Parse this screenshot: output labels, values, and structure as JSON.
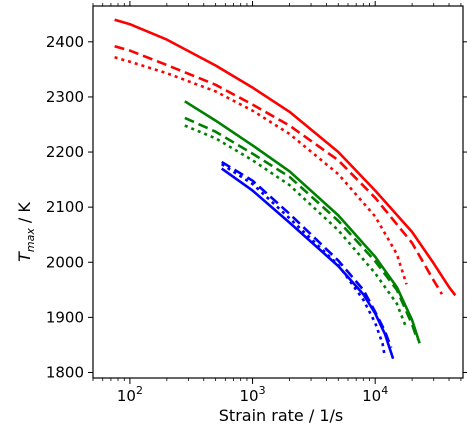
{
  "chart_data": {
    "type": "line",
    "xlabel": "Strain rate / 1/s",
    "ylabel_main": "T",
    "ylabel_sub": "max",
    "ylabel_unit": " / K",
    "xscale": "log",
    "xlim": [
      50,
      52000
    ],
    "ylim": [
      1790,
      2465
    ],
    "x_ticks": [
      {
        "value": 100,
        "base": "10",
        "exp": "2"
      },
      {
        "value": 1000,
        "base": "10",
        "exp": "3"
      },
      {
        "value": 10000,
        "base": "10",
        "exp": "4"
      }
    ],
    "y_ticks": [
      1800,
      1900,
      2000,
      2100,
      2200,
      2300,
      2400
    ],
    "grid": false,
    "series": [
      {
        "color": "#ff0000",
        "style": "solid",
        "x": [
          75,
          100,
          200,
          500,
          1000,
          2000,
          5000,
          10000,
          20000,
          30000,
          40000,
          45000
        ],
        "y": [
          2440,
          2432,
          2404,
          2357,
          2317,
          2273,
          2200,
          2130,
          2055,
          1998,
          1955,
          1940
        ]
      },
      {
        "color": "#ff0000",
        "style": "dashed",
        "x": [
          75,
          100,
          200,
          500,
          1000,
          2000,
          5000,
          10000,
          20000,
          30000,
          35000
        ],
        "y": [
          2392,
          2384,
          2358,
          2322,
          2286,
          2248,
          2185,
          2117,
          2035,
          1967,
          1942
        ]
      },
      {
        "color": "#ff0000",
        "style": "dotted",
        "x": [
          75,
          100,
          200,
          500,
          1000,
          2000,
          5000,
          10000,
          15000,
          18000
        ],
        "y": [
          2372,
          2364,
          2343,
          2310,
          2275,
          2233,
          2160,
          2083,
          2015,
          1960
        ]
      },
      {
        "color": "#008000",
        "style": "solid",
        "x": [
          280,
          500,
          1000,
          2000,
          5000,
          10000,
          15000,
          20000,
          23000
        ],
        "y": [
          2292,
          2257,
          2212,
          2165,
          2085,
          2010,
          1955,
          1895,
          1853
        ]
      },
      {
        "color": "#008000",
        "style": "dashed",
        "x": [
          280,
          500,
          1000,
          2000,
          5000,
          10000,
          15000,
          20000,
          22000
        ],
        "y": [
          2262,
          2237,
          2197,
          2155,
          2075,
          2002,
          1950,
          1887,
          1860
        ]
      },
      {
        "color": "#008000",
        "style": "dotted",
        "x": [
          280,
          500,
          1000,
          2000,
          5000,
          10000,
          15000,
          18000
        ],
        "y": [
          2248,
          2225,
          2185,
          2140,
          2058,
          1980,
          1925,
          1880
        ]
      },
      {
        "color": "#0000ff",
        "style": "solid",
        "x": [
          560,
          1000,
          2000,
          5000,
          8000,
          10000,
          12000,
          14000
        ],
        "y": [
          2170,
          2130,
          2072,
          1993,
          1942,
          1907,
          1870,
          1825
        ]
      },
      {
        "color": "#0000ff",
        "style": "dashed",
        "x": [
          560,
          1000,
          2000,
          5000,
          8000,
          10000,
          12000,
          13500
        ],
        "y": [
          2182,
          2148,
          2088,
          2003,
          1950,
          1910,
          1875,
          1845
        ]
      },
      {
        "color": "#0000ff",
        "style": "dotted",
        "x": [
          560,
          1000,
          2000,
          5000,
          8000,
          10000,
          11500,
          12000
        ],
        "y": [
          2178,
          2142,
          2080,
          1995,
          1932,
          1890,
          1852,
          1828
        ]
      }
    ]
  }
}
